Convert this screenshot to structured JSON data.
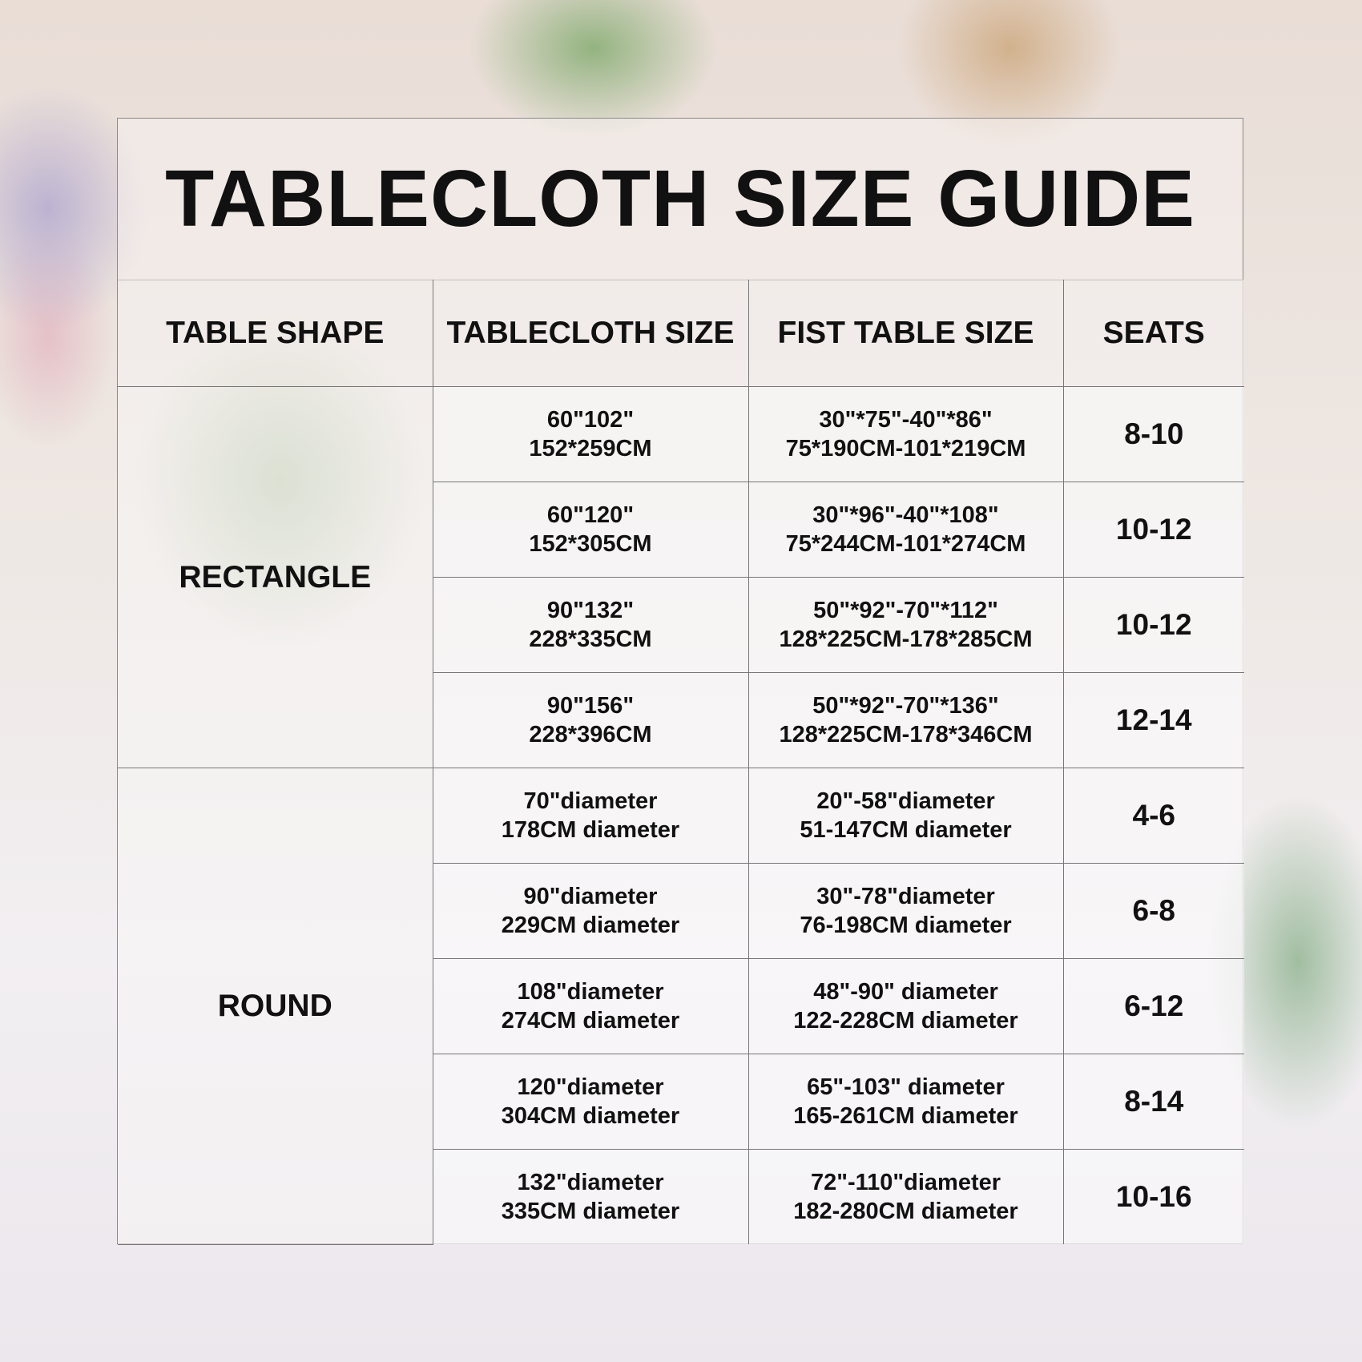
{
  "title": "TABLECLOTH SIZE GUIDE",
  "headers": [
    "TABLE SHAPE",
    "TABLECLOTH SIZE",
    "FIST TABLE SIZE",
    "SEATS"
  ],
  "groups": [
    {
      "shape": "RECTANGLE",
      "rows": [
        {
          "cloth": [
            "60\"102\"",
            "152*259CM"
          ],
          "table": [
            "30\"*75\"-40\"*86\"",
            "75*190CM-101*219CM"
          ],
          "seats": "8-10"
        },
        {
          "cloth": [
            "60\"120\"",
            "152*305CM"
          ],
          "table": [
            "30\"*96\"-40\"*108\"",
            "75*244CM-101*274CM"
          ],
          "seats": "10-12"
        },
        {
          "cloth": [
            "90\"132\"",
            "228*335CM"
          ],
          "table": [
            "50\"*92\"-70\"*112\"",
            "128*225CM-178*285CM"
          ],
          "seats": "10-12"
        },
        {
          "cloth": [
            "90\"156\"",
            "228*396CM"
          ],
          "table": [
            "50\"*92\"-70\"*136\"",
            "128*225CM-178*346CM"
          ],
          "seats": "12-14"
        }
      ]
    },
    {
      "shape": "ROUND",
      "rows": [
        {
          "cloth": [
            "70\"diameter",
            "178CM diameter"
          ],
          "table": [
            "20\"-58\"diameter",
            "51-147CM diameter"
          ],
          "seats": "4-6"
        },
        {
          "cloth": [
            "90\"diameter",
            "229CM diameter"
          ],
          "table": [
            "30\"-78\"diameter",
            "76-198CM diameter"
          ],
          "seats": "6-8"
        },
        {
          "cloth": [
            "108\"diameter",
            "274CM diameter"
          ],
          "table": [
            "48\"-90\" diameter",
            "122-228CM diameter"
          ],
          "seats": "6-12"
        },
        {
          "cloth": [
            "120\"diameter",
            "304CM diameter"
          ],
          "table": [
            "65\"-103\" diameter",
            "165-261CM diameter"
          ],
          "seats": "8-14"
        },
        {
          "cloth": [
            "132\"diameter",
            "335CM diameter"
          ],
          "table": [
            "72\"-110\"diameter",
            "182-280CM diameter"
          ],
          "seats": "10-16"
        }
      ]
    }
  ]
}
